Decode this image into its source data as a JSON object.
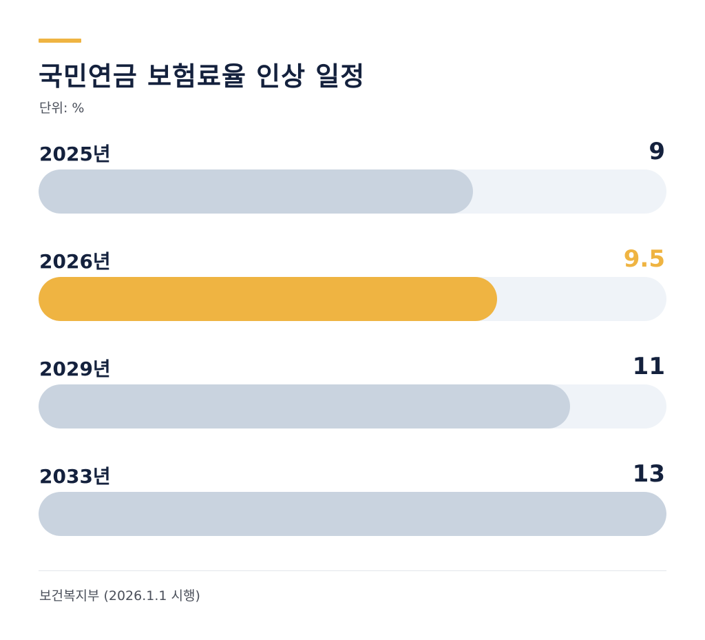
{
  "header": {
    "title": "국민연금 보험료율 인상 일정",
    "unit": "단위: %"
  },
  "footer": {
    "source": "보건복지부 (2026.1.1 시행)"
  },
  "colors": {
    "accent": "#efb442",
    "bar_default": "#c9d3df",
    "track": "#eff3f8",
    "text_dark": "#14213d"
  },
  "chart_data": {
    "type": "bar",
    "orientation": "horizontal",
    "title": "국민연금 보험료율 인상 일정",
    "unit": "단위: %",
    "categories": [
      "2025년",
      "2026년",
      "2029년",
      "2033년"
    ],
    "values": [
      9,
      9.5,
      11,
      13
    ],
    "value_labels": [
      "9",
      "9.5",
      "11",
      "13"
    ],
    "highlight_index": 1,
    "xlim": [
      0,
      13
    ],
    "grid": false,
    "source": "보건복지부 (2026.1.1 시행)"
  }
}
